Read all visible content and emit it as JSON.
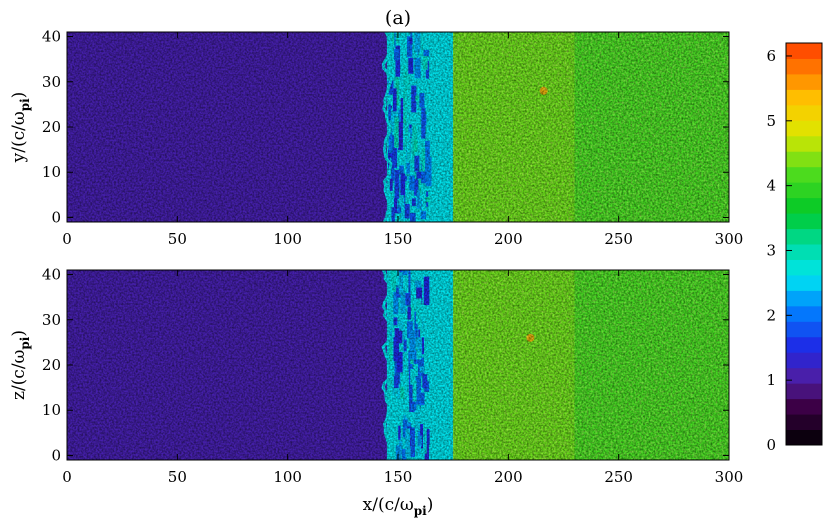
{
  "chart_data": [
    {
      "type": "heatmap",
      "panel_label": "(a)",
      "xlabel": "",
      "ylabel": "y/(c/ω",
      "ylabel_sub": "pi",
      "ylabel_close": ")",
      "xlim": [
        0,
        300
      ],
      "ylim": [
        -1,
        41
      ],
      "xticks": [
        "0",
        "50",
        "100",
        "150",
        "200",
        "250",
        "300"
      ],
      "yticks": [
        "0",
        "10",
        "20",
        "30",
        "40"
      ],
      "regions": [
        {
          "x_range": [
            0,
            145
          ],
          "value": 1.1,
          "description_level": "upstream"
        },
        {
          "x_range": [
            145,
            175
          ],
          "value": 2.6,
          "description_level": "shock front"
        },
        {
          "x_range": [
            175,
            300
          ],
          "value": 4.1,
          "description_level": "downstream"
        }
      ],
      "shock_x": 145,
      "hotspot": {
        "x": 216,
        "y": 28,
        "value": 5.6
      }
    },
    {
      "type": "heatmap",
      "panel_label": "",
      "xlabel": "x/(c/ω",
      "xlabel_sub": "pi",
      "xlabel_close": ")",
      "ylabel": "z/(c/ω",
      "ylabel_sub": "pi",
      "ylabel_close": ")",
      "xlim": [
        0,
        300
      ],
      "ylim": [
        -1,
        41
      ],
      "xticks": [
        "0",
        "50",
        "100",
        "150",
        "200",
        "250",
        "300"
      ],
      "yticks": [
        "0",
        "10",
        "20",
        "30",
        "40"
      ],
      "regions": [
        {
          "x_range": [
            0,
            145
          ],
          "value": 1.1,
          "description_level": "upstream"
        },
        {
          "x_range": [
            145,
            175
          ],
          "value": 2.6,
          "description_level": "shock front"
        },
        {
          "x_range": [
            175,
            300
          ],
          "value": 4.1,
          "description_level": "downstream"
        }
      ],
      "shock_x": 145,
      "hotspot": {
        "x": 210,
        "y": 26,
        "value": 5.6
      }
    }
  ],
  "colorbar": {
    "range": [
      0,
      6.2
    ],
    "ticks": [
      "0",
      "1",
      "2",
      "3",
      "4",
      "5",
      "6"
    ],
    "levels": 26
  }
}
